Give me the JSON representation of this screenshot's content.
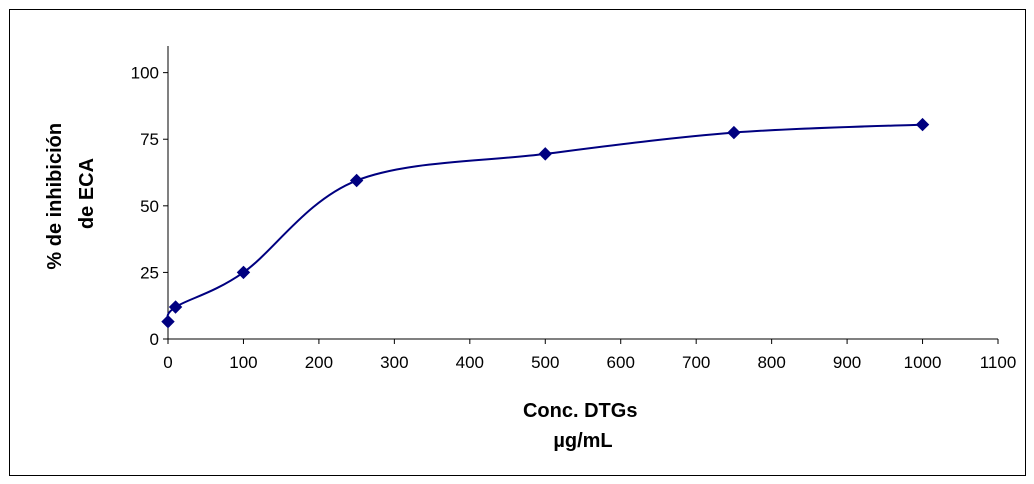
{
  "chart_data": {
    "type": "scatter",
    "xlabel": [
      "Conc. DTGs",
      "µg/mL"
    ],
    "ylabel": [
      "% de inhibición",
      "de ECA"
    ],
    "xlim": [
      0,
      1100
    ],
    "ylim": [
      0,
      110
    ],
    "x_ticks": [
      0,
      100,
      200,
      300,
      400,
      500,
      600,
      700,
      800,
      900,
      1000,
      1100
    ],
    "y_ticks": [
      0,
      25,
      50,
      75,
      100
    ],
    "grid": false,
    "legend": "none",
    "series": [
      {
        "line": "smooth",
        "marker": "diamond",
        "color": "#000080",
        "points": [
          {
            "x": 0,
            "y": 6.5
          },
          {
            "x": 10,
            "y": 12
          },
          {
            "x": 100,
            "y": 25
          },
          {
            "x": 250,
            "y": 59.5
          },
          {
            "x": 500,
            "y": 69.5
          },
          {
            "x": 750,
            "y": 77.5
          },
          {
            "x": 1000,
            "y": 80.5
          }
        ]
      }
    ]
  }
}
